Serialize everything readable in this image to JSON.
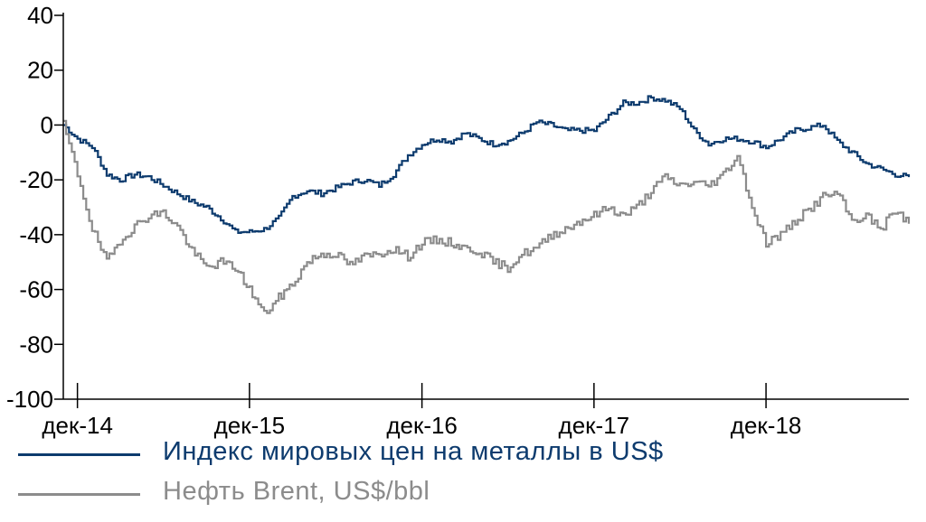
{
  "chart_data": {
    "type": "line",
    "xlabel": "",
    "ylabel": "",
    "ylim": [
      -100,
      40
    ],
    "yticks": [
      40,
      20,
      0,
      -20,
      -40,
      -60,
      -80,
      -100
    ],
    "x_range": [
      "2014-11-01",
      "2019-09-30"
    ],
    "xticks": [
      {
        "date": "2014-12-01",
        "label": "дек-14"
      },
      {
        "date": "2015-12-01",
        "label": "дек-15"
      },
      {
        "date": "2016-12-01",
        "label": "дек-16"
      },
      {
        "date": "2017-12-01",
        "label": "дек-17"
      },
      {
        "date": "2018-12-01",
        "label": "дек-18"
      }
    ],
    "grid": false,
    "legend_position": "bottom-left",
    "series": [
      {
        "name": "Индекс мировых цен на металлы в US$",
        "color": "#0d3b6e",
        "points": [
          [
            "2014-11-01",
            0
          ],
          [
            "2014-12-01",
            -5
          ],
          [
            "2015-01-01",
            -8
          ],
          [
            "2015-02-01",
            -18
          ],
          [
            "2015-03-01",
            -20
          ],
          [
            "2015-04-01",
            -18
          ],
          [
            "2015-05-01",
            -19
          ],
          [
            "2015-06-01",
            -22
          ],
          [
            "2015-07-01",
            -25
          ],
          [
            "2015-08-01",
            -28
          ],
          [
            "2015-09-01",
            -30
          ],
          [
            "2015-10-01",
            -34
          ],
          [
            "2015-11-01",
            -39
          ],
          [
            "2015-12-01",
            -39
          ],
          [
            "2016-01-01",
            -38
          ],
          [
            "2016-02-01",
            -34
          ],
          [
            "2016-03-01",
            -26
          ],
          [
            "2016-04-01",
            -24
          ],
          [
            "2016-05-01",
            -25
          ],
          [
            "2016-06-01",
            -23
          ],
          [
            "2016-07-01",
            -21
          ],
          [
            "2016-08-01",
            -20
          ],
          [
            "2016-09-01",
            -22
          ],
          [
            "2016-10-01",
            -18
          ],
          [
            "2016-11-01",
            -11
          ],
          [
            "2016-12-01",
            -7
          ],
          [
            "2017-01-01",
            -5
          ],
          [
            "2017-02-01",
            -6
          ],
          [
            "2017-03-01",
            -3
          ],
          [
            "2017-04-01",
            -5
          ],
          [
            "2017-05-01",
            -7
          ],
          [
            "2017-06-01",
            -6
          ],
          [
            "2017-07-01",
            -3
          ],
          [
            "2017-08-01",
            1
          ],
          [
            "2017-09-01",
            0
          ],
          [
            "2017-10-01",
            -2
          ],
          [
            "2017-11-01",
            -2
          ],
          [
            "2017-12-01",
            -2
          ],
          [
            "2018-01-01",
            3
          ],
          [
            "2018-02-01",
            8
          ],
          [
            "2018-03-01",
            8
          ],
          [
            "2018-04-01",
            10
          ],
          [
            "2018-05-01",
            9
          ],
          [
            "2018-06-01",
            6
          ],
          [
            "2018-07-01",
            -2
          ],
          [
            "2018-08-01",
            -7
          ],
          [
            "2018-09-01",
            -5
          ],
          [
            "2018-10-01",
            -5
          ],
          [
            "2018-11-01",
            -6
          ],
          [
            "2018-12-01",
            -8
          ],
          [
            "2019-01-01",
            -5
          ],
          [
            "2019-02-01",
            -2
          ],
          [
            "2019-03-01",
            -1
          ],
          [
            "2019-04-01",
            0
          ],
          [
            "2019-05-01",
            -6
          ],
          [
            "2019-06-01",
            -10
          ],
          [
            "2019-07-01",
            -14
          ],
          [
            "2019-08-01",
            -16
          ],
          [
            "2019-09-01",
            -18
          ],
          [
            "2019-09-30",
            -19
          ]
        ]
      },
      {
        "name": "Нефть Brent, US$/bbl",
        "color": "#8c8c8c",
        "points": [
          [
            "2014-11-01",
            0
          ],
          [
            "2014-12-01",
            -18
          ],
          [
            "2015-01-01",
            -38
          ],
          [
            "2015-02-01",
            -50
          ],
          [
            "2015-03-01",
            -42
          ],
          [
            "2015-04-01",
            -37
          ],
          [
            "2015-05-01",
            -33
          ],
          [
            "2015-06-01",
            -32
          ],
          [
            "2015-07-01",
            -37
          ],
          [
            "2015-08-01",
            -46
          ],
          [
            "2015-09-01",
            -52
          ],
          [
            "2015-10-01",
            -50
          ],
          [
            "2015-11-01",
            -52
          ],
          [
            "2015-12-01",
            -60
          ],
          [
            "2016-01-01",
            -69
          ],
          [
            "2016-02-01",
            -63
          ],
          [
            "2016-03-01",
            -58
          ],
          [
            "2016-04-01",
            -50
          ],
          [
            "2016-05-01",
            -47
          ],
          [
            "2016-06-01",
            -47
          ],
          [
            "2016-07-01",
            -51
          ],
          [
            "2016-08-01",
            -48
          ],
          [
            "2016-09-01",
            -47
          ],
          [
            "2016-10-01",
            -45
          ],
          [
            "2016-11-01",
            -48
          ],
          [
            "2016-12-01",
            -43
          ],
          [
            "2017-01-01",
            -42
          ],
          [
            "2017-02-01",
            -43
          ],
          [
            "2017-03-01",
            -45
          ],
          [
            "2017-04-01",
            -46
          ],
          [
            "2017-05-01",
            -50
          ],
          [
            "2017-06-01",
            -52
          ],
          [
            "2017-07-01",
            -47
          ],
          [
            "2017-08-01",
            -45
          ],
          [
            "2017-09-01",
            -40
          ],
          [
            "2017-10-01",
            -38
          ],
          [
            "2017-11-01",
            -35
          ],
          [
            "2017-12-01",
            -33
          ],
          [
            "2018-01-01",
            -30
          ],
          [
            "2018-02-01",
            -33
          ],
          [
            "2018-03-01",
            -30
          ],
          [
            "2018-04-01",
            -24
          ],
          [
            "2018-05-01",
            -19
          ],
          [
            "2018-06-01",
            -22
          ],
          [
            "2018-07-01",
            -21
          ],
          [
            "2018-08-01",
            -22
          ],
          [
            "2018-09-01",
            -18
          ],
          [
            "2018-10-01",
            -11
          ],
          [
            "2018-11-01",
            -30
          ],
          [
            "2018-12-01",
            -43
          ],
          [
            "2019-01-01",
            -40
          ],
          [
            "2019-02-01",
            -35
          ],
          [
            "2019-03-01",
            -31
          ],
          [
            "2019-04-01",
            -26
          ],
          [
            "2019-05-01",
            -25
          ],
          [
            "2019-06-01",
            -35
          ],
          [
            "2019-07-01",
            -33
          ],
          [
            "2019-08-01",
            -38
          ],
          [
            "2019-09-01",
            -31
          ],
          [
            "2019-09-30",
            -36
          ]
        ]
      }
    ]
  }
}
